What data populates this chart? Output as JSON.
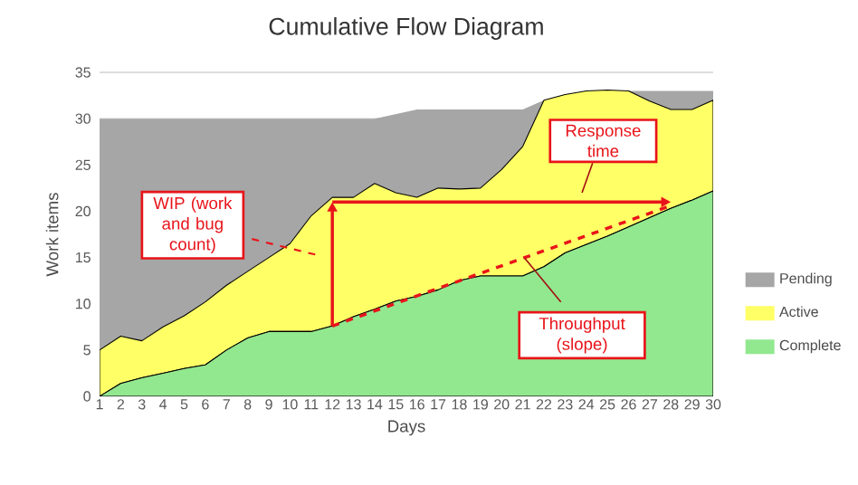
{
  "chart_data": {
    "type": "area",
    "stacked": true,
    "title": "Cumulative Flow Diagram",
    "xlabel": "Days",
    "ylabel": "Work items",
    "x": [
      1,
      2,
      3,
      4,
      5,
      6,
      7,
      8,
      9,
      10,
      11,
      12,
      13,
      14,
      15,
      16,
      17,
      18,
      19,
      20,
      21,
      22,
      23,
      24,
      25,
      26,
      27,
      28,
      29,
      30
    ],
    "series": [
      {
        "name": "Complete",
        "color": "#92e88f",
        "values": [
          0,
          1.4,
          2,
          2.5,
          3,
          3.4,
          5,
          6.3,
          7,
          7,
          7,
          7.6,
          8.6,
          9.4,
          10.3,
          10.8,
          11.5,
          12.5,
          13,
          13,
          13,
          14,
          15.5,
          16.4,
          17.3,
          18.3,
          19.3,
          20.3,
          21.2,
          22.2
        ]
      },
      {
        "name": "Active",
        "color": "#ffff66",
        "values": [
          5,
          5.1,
          4,
          5,
          5.7,
          6.8,
          7,
          7.2,
          8,
          9.5,
          12.5,
          13.9,
          12.9,
          13.6,
          11.7,
          10.7,
          11,
          9.9,
          9.5,
          11.5,
          14,
          18,
          17.1,
          16.6,
          15.8,
          14.7,
          12.6,
          10.7,
          9.8,
          9.8
        ]
      },
      {
        "name": "Pending",
        "color": "#a6a6a6",
        "values": [
          25,
          23.5,
          24,
          22.5,
          21.3,
          19.8,
          18,
          16.5,
          15,
          13.5,
          10.5,
          8.5,
          8.5,
          7,
          8.5,
          9.5,
          8.5,
          8.6,
          8.5,
          6.5,
          4,
          0,
          0,
          0,
          0,
          0,
          1.1,
          2,
          2,
          1
        ]
      }
    ],
    "xlim": [
      1,
      30
    ],
    "xticks": [
      1,
      2,
      3,
      4,
      5,
      6,
      7,
      8,
      9,
      10,
      11,
      12,
      13,
      14,
      15,
      16,
      17,
      18,
      19,
      20,
      21,
      22,
      23,
      24,
      25,
      26,
      27,
      28,
      29,
      30
    ],
    "ylim": [
      0,
      35
    ],
    "yticks": [
      0,
      5,
      10,
      15,
      20,
      25,
      30,
      35
    ],
    "grid": "y",
    "legend": "right",
    "annotations": [
      "WIP (work and bug count)",
      "Response time",
      "Throughput (slope)"
    ]
  }
}
